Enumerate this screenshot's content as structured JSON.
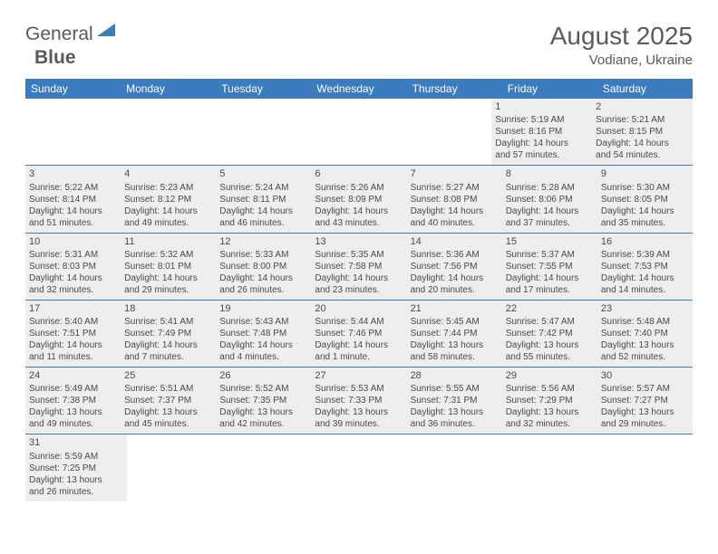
{
  "logo": {
    "text1": "General",
    "text2": "Blue"
  },
  "title": "August 2025",
  "location": "Vodiane, Ukraine",
  "colors": {
    "header_bg": "#3b7bbf",
    "header_text": "#ffffff",
    "shade_bg": "#eeeeee",
    "border": "#3b7bbf",
    "body_text": "#4a4a4a"
  },
  "dayHeaders": [
    "Sunday",
    "Monday",
    "Tuesday",
    "Wednesday",
    "Thursday",
    "Friday",
    "Saturday"
  ],
  "weeks": [
    [
      null,
      null,
      null,
      null,
      null,
      {
        "n": "1",
        "sr": "5:19 AM",
        "ss": "8:16 PM",
        "dl": "14 hours and 57 minutes.",
        "shade": true
      },
      {
        "n": "2",
        "sr": "5:21 AM",
        "ss": "8:15 PM",
        "dl": "14 hours and 54 minutes.",
        "shade": true
      }
    ],
    [
      {
        "n": "3",
        "sr": "5:22 AM",
        "ss": "8:14 PM",
        "dl": "14 hours and 51 minutes.",
        "shade": true
      },
      {
        "n": "4",
        "sr": "5:23 AM",
        "ss": "8:12 PM",
        "dl": "14 hours and 49 minutes.",
        "shade": true
      },
      {
        "n": "5",
        "sr": "5:24 AM",
        "ss": "8:11 PM",
        "dl": "14 hours and 46 minutes.",
        "shade": true
      },
      {
        "n": "6",
        "sr": "5:26 AM",
        "ss": "8:09 PM",
        "dl": "14 hours and 43 minutes.",
        "shade": true
      },
      {
        "n": "7",
        "sr": "5:27 AM",
        "ss": "8:08 PM",
        "dl": "14 hours and 40 minutes.",
        "shade": true
      },
      {
        "n": "8",
        "sr": "5:28 AM",
        "ss": "8:06 PM",
        "dl": "14 hours and 37 minutes.",
        "shade": true
      },
      {
        "n": "9",
        "sr": "5:30 AM",
        "ss": "8:05 PM",
        "dl": "14 hours and 35 minutes.",
        "shade": true
      }
    ],
    [
      {
        "n": "10",
        "sr": "5:31 AM",
        "ss": "8:03 PM",
        "dl": "14 hours and 32 minutes.",
        "shade": true
      },
      {
        "n": "11",
        "sr": "5:32 AM",
        "ss": "8:01 PM",
        "dl": "14 hours and 29 minutes.",
        "shade": true
      },
      {
        "n": "12",
        "sr": "5:33 AM",
        "ss": "8:00 PM",
        "dl": "14 hours and 26 minutes.",
        "shade": true
      },
      {
        "n": "13",
        "sr": "5:35 AM",
        "ss": "7:58 PM",
        "dl": "14 hours and 23 minutes.",
        "shade": true
      },
      {
        "n": "14",
        "sr": "5:36 AM",
        "ss": "7:56 PM",
        "dl": "14 hours and 20 minutes.",
        "shade": true
      },
      {
        "n": "15",
        "sr": "5:37 AM",
        "ss": "7:55 PM",
        "dl": "14 hours and 17 minutes.",
        "shade": true
      },
      {
        "n": "16",
        "sr": "5:39 AM",
        "ss": "7:53 PM",
        "dl": "14 hours and 14 minutes.",
        "shade": true
      }
    ],
    [
      {
        "n": "17",
        "sr": "5:40 AM",
        "ss": "7:51 PM",
        "dl": "14 hours and 11 minutes.",
        "shade": true
      },
      {
        "n": "18",
        "sr": "5:41 AM",
        "ss": "7:49 PM",
        "dl": "14 hours and 7 minutes.",
        "shade": true
      },
      {
        "n": "19",
        "sr": "5:43 AM",
        "ss": "7:48 PM",
        "dl": "14 hours and 4 minutes.",
        "shade": true
      },
      {
        "n": "20",
        "sr": "5:44 AM",
        "ss": "7:46 PM",
        "dl": "14 hours and 1 minute.",
        "shade": true
      },
      {
        "n": "21",
        "sr": "5:45 AM",
        "ss": "7:44 PM",
        "dl": "13 hours and 58 minutes.",
        "shade": true
      },
      {
        "n": "22",
        "sr": "5:47 AM",
        "ss": "7:42 PM",
        "dl": "13 hours and 55 minutes.",
        "shade": true
      },
      {
        "n": "23",
        "sr": "5:48 AM",
        "ss": "7:40 PM",
        "dl": "13 hours and 52 minutes.",
        "shade": true
      }
    ],
    [
      {
        "n": "24",
        "sr": "5:49 AM",
        "ss": "7:38 PM",
        "dl": "13 hours and 49 minutes.",
        "shade": true
      },
      {
        "n": "25",
        "sr": "5:51 AM",
        "ss": "7:37 PM",
        "dl": "13 hours and 45 minutes.",
        "shade": true
      },
      {
        "n": "26",
        "sr": "5:52 AM",
        "ss": "7:35 PM",
        "dl": "13 hours and 42 minutes.",
        "shade": true
      },
      {
        "n": "27",
        "sr": "5:53 AM",
        "ss": "7:33 PM",
        "dl": "13 hours and 39 minutes.",
        "shade": true
      },
      {
        "n": "28",
        "sr": "5:55 AM",
        "ss": "7:31 PM",
        "dl": "13 hours and 36 minutes.",
        "shade": true
      },
      {
        "n": "29",
        "sr": "5:56 AM",
        "ss": "7:29 PM",
        "dl": "13 hours and 32 minutes.",
        "shade": true
      },
      {
        "n": "30",
        "sr": "5:57 AM",
        "ss": "7:27 PM",
        "dl": "13 hours and 29 minutes.",
        "shade": true
      }
    ],
    [
      {
        "n": "31",
        "sr": "5:59 AM",
        "ss": "7:25 PM",
        "dl": "13 hours and 26 minutes.",
        "shade": true
      },
      null,
      null,
      null,
      null,
      null,
      null
    ]
  ],
  "labels": {
    "sunrise": "Sunrise:",
    "sunset": "Sunset:",
    "daylight": "Daylight:"
  }
}
